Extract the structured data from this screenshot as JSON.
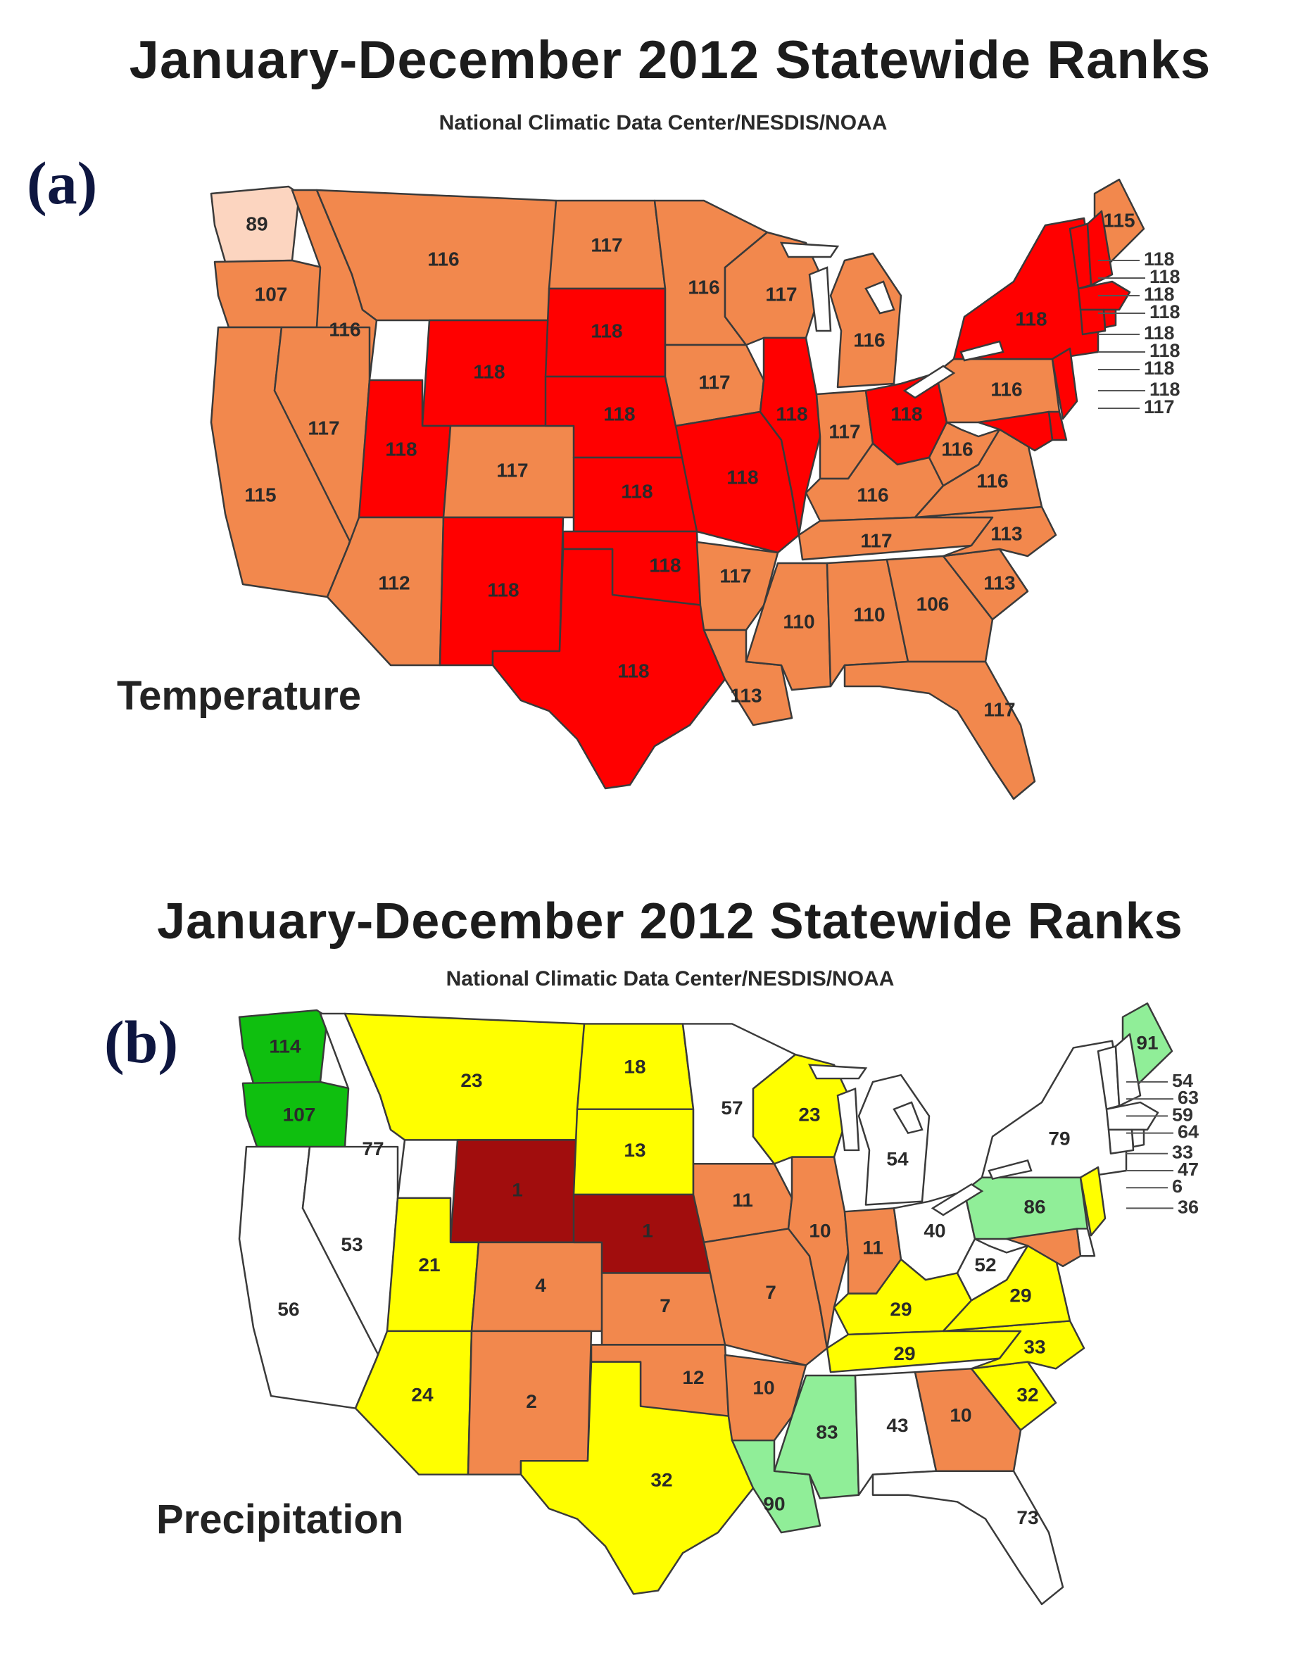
{
  "colors": {
    "record_warmest": "#ff0000",
    "much_above": "#f2884d",
    "above_normal": "#fcd5c0",
    "driest": "#a10d0d",
    "much_below": "#f2884d",
    "below_normal": "#ffff00",
    "near_normal": "#ffffff",
    "above_normal_precip": "#90ee98",
    "much_above_precip": "#0fbf0f"
  },
  "panels": [
    {
      "id": "a",
      "title": "January-December 2012 Statewide Ranks",
      "subtitle": "National Climatic Data Center/NESDIS/NOAA",
      "label": "(a)",
      "map_name": "Temperature",
      "states": [
        {
          "code": "WA",
          "rank": "89",
          "color": "#fcd5c0"
        },
        {
          "code": "OR",
          "rank": "107",
          "color": "#f2884d"
        },
        {
          "code": "CA",
          "rank": "115",
          "color": "#f2884d"
        },
        {
          "code": "ID",
          "rank": "116",
          "color": "#f2884d"
        },
        {
          "code": "NV",
          "rank": "117",
          "color": "#f2884d"
        },
        {
          "code": "MT",
          "rank": "116",
          "color": "#f2884d"
        },
        {
          "code": "WY",
          "rank": "118",
          "color": "#ff0000"
        },
        {
          "code": "UT",
          "rank": "118",
          "color": "#ff0000"
        },
        {
          "code": "CO",
          "rank": "117",
          "color": "#f2884d"
        },
        {
          "code": "AZ",
          "rank": "112",
          "color": "#f2884d"
        },
        {
          "code": "NM",
          "rank": "118",
          "color": "#ff0000"
        },
        {
          "code": "ND",
          "rank": "117",
          "color": "#f2884d"
        },
        {
          "code": "SD",
          "rank": "118",
          "color": "#ff0000"
        },
        {
          "code": "NE",
          "rank": "118",
          "color": "#ff0000"
        },
        {
          "code": "KS",
          "rank": "118",
          "color": "#ff0000"
        },
        {
          "code": "OK",
          "rank": "118",
          "color": "#ff0000"
        },
        {
          "code": "TX",
          "rank": "118",
          "color": "#ff0000"
        },
        {
          "code": "MN",
          "rank": "116",
          "color": "#f2884d"
        },
        {
          "code": "IA",
          "rank": "117",
          "color": "#f2884d"
        },
        {
          "code": "MO",
          "rank": "118",
          "color": "#ff0000"
        },
        {
          "code": "AR",
          "rank": "117",
          "color": "#f2884d"
        },
        {
          "code": "LA",
          "rank": "113",
          "color": "#f2884d"
        },
        {
          "code": "WI",
          "rank": "117",
          "color": "#f2884d"
        },
        {
          "code": "IL",
          "rank": "118",
          "color": "#ff0000"
        },
        {
          "code": "MI",
          "rank": "116",
          "color": "#f2884d"
        },
        {
          "code": "IN",
          "rank": "117",
          "color": "#f2884d"
        },
        {
          "code": "OH",
          "rank": "118",
          "color": "#ff0000"
        },
        {
          "code": "KY",
          "rank": "116",
          "color": "#f2884d"
        },
        {
          "code": "TN",
          "rank": "117",
          "color": "#f2884d"
        },
        {
          "code": "MS",
          "rank": "110",
          "color": "#f2884d"
        },
        {
          "code": "AL",
          "rank": "110",
          "color": "#f2884d"
        },
        {
          "code": "GA",
          "rank": "106",
          "color": "#f2884d"
        },
        {
          "code": "FL",
          "rank": "117",
          "color": "#f2884d"
        },
        {
          "code": "SC",
          "rank": "113",
          "color": "#f2884d"
        },
        {
          "code": "NC",
          "rank": "113",
          "color": "#f2884d"
        },
        {
          "code": "VA",
          "rank": "116",
          "color": "#f2884d"
        },
        {
          "code": "WV",
          "rank": "116",
          "color": "#f2884d"
        },
        {
          "code": "PA",
          "rank": "116",
          "color": "#f2884d"
        },
        {
          "code": "NY",
          "rank": "118",
          "color": "#ff0000"
        },
        {
          "code": "ME",
          "rank": "115",
          "color": "#f2884d"
        },
        {
          "code": "VT",
          "rank": "",
          "color": "#ff0000"
        },
        {
          "code": "NH",
          "rank": "",
          "color": "#ff0000"
        },
        {
          "code": "MA",
          "rank": "",
          "color": "#ff0000"
        },
        {
          "code": "CT",
          "rank": "",
          "color": "#ff0000"
        },
        {
          "code": "RI",
          "rank": "",
          "color": "#ff0000"
        },
        {
          "code": "NJ",
          "rank": "",
          "color": "#ff0000"
        },
        {
          "code": "DE",
          "rank": "",
          "color": "#ff0000"
        },
        {
          "code": "MD",
          "rank": "",
          "color": "#ff0000"
        }
      ],
      "callouts": [
        "118",
        "118",
        "118",
        "118",
        "118",
        "118",
        "118",
        "118",
        "117"
      ]
    },
    {
      "id": "b",
      "title": "January-December 2012 Statewide Ranks",
      "subtitle": "National Climatic Data Center/NESDIS/NOAA",
      "label": "(b)",
      "map_name": "Precipitation",
      "states": [
        {
          "code": "WA",
          "rank": "114",
          "color": "#0fbf0f"
        },
        {
          "code": "OR",
          "rank": "107",
          "color": "#0fbf0f"
        },
        {
          "code": "CA",
          "rank": "56",
          "color": "#ffffff"
        },
        {
          "code": "ID",
          "rank": "77",
          "color": "#ffffff"
        },
        {
          "code": "NV",
          "rank": "53",
          "color": "#ffffff"
        },
        {
          "code": "MT",
          "rank": "23",
          "color": "#ffff00"
        },
        {
          "code": "WY",
          "rank": "1",
          "color": "#a10d0d"
        },
        {
          "code": "UT",
          "rank": "21",
          "color": "#ffff00"
        },
        {
          "code": "CO",
          "rank": "4",
          "color": "#f2884d"
        },
        {
          "code": "AZ",
          "rank": "24",
          "color": "#ffff00"
        },
        {
          "code": "NM",
          "rank": "2",
          "color": "#f2884d"
        },
        {
          "code": "ND",
          "rank": "18",
          "color": "#ffff00"
        },
        {
          "code": "SD",
          "rank": "13",
          "color": "#ffff00"
        },
        {
          "code": "NE",
          "rank": "1",
          "color": "#a10d0d"
        },
        {
          "code": "KS",
          "rank": "7",
          "color": "#f2884d"
        },
        {
          "code": "OK",
          "rank": "12",
          "color": "#f2884d"
        },
        {
          "code": "TX",
          "rank": "32",
          "color": "#ffff00"
        },
        {
          "code": "MN",
          "rank": "57",
          "color": "#ffffff"
        },
        {
          "code": "IA",
          "rank": "11",
          "color": "#f2884d"
        },
        {
          "code": "MO",
          "rank": "7",
          "color": "#f2884d"
        },
        {
          "code": "AR",
          "rank": "10",
          "color": "#f2884d"
        },
        {
          "code": "LA",
          "rank": "90",
          "color": "#90ee98"
        },
        {
          "code": "WI",
          "rank": "23",
          "color": "#ffff00"
        },
        {
          "code": "IL",
          "rank": "10",
          "color": "#f2884d"
        },
        {
          "code": "MI",
          "rank": "54",
          "color": "#ffffff"
        },
        {
          "code": "IN",
          "rank": "11",
          "color": "#f2884d"
        },
        {
          "code": "OH",
          "rank": "40",
          "color": "#ffffff"
        },
        {
          "code": "KY",
          "rank": "29",
          "color": "#ffff00"
        },
        {
          "code": "TN",
          "rank": "29",
          "color": "#ffff00"
        },
        {
          "code": "MS",
          "rank": "83",
          "color": "#90ee98"
        },
        {
          "code": "AL",
          "rank": "43",
          "color": "#ffffff"
        },
        {
          "code": "GA",
          "rank": "10",
          "color": "#f2884d"
        },
        {
          "code": "FL",
          "rank": "73",
          "color": "#ffffff"
        },
        {
          "code": "SC",
          "rank": "32",
          "color": "#ffff00"
        },
        {
          "code": "NC",
          "rank": "33",
          "color": "#ffff00"
        },
        {
          "code": "VA",
          "rank": "29",
          "color": "#ffff00"
        },
        {
          "code": "WV",
          "rank": "52",
          "color": "#ffffff"
        },
        {
          "code": "PA",
          "rank": "86",
          "color": "#90ee98"
        },
        {
          "code": "NY",
          "rank": "79",
          "color": "#ffffff"
        },
        {
          "code": "ME",
          "rank": "91",
          "color": "#90ee98"
        },
        {
          "code": "VT",
          "rank": "",
          "color": "#ffffff"
        },
        {
          "code": "NH",
          "rank": "",
          "color": "#ffffff"
        },
        {
          "code": "MA",
          "rank": "",
          "color": "#ffffff"
        },
        {
          "code": "CT",
          "rank": "",
          "color": "#ffffff"
        },
        {
          "code": "RI",
          "rank": "",
          "color": "#ffffff"
        },
        {
          "code": "NJ",
          "rank": "",
          "color": "#ffff00"
        },
        {
          "code": "DE",
          "rank": "",
          "color": "#ffffff"
        },
        {
          "code": "MD",
          "rank": "",
          "color": "#f2884d"
        }
      ],
      "callouts": [
        "54",
        "63",
        "59",
        "64",
        "33",
        "47",
        "6",
        "36"
      ]
    }
  ]
}
